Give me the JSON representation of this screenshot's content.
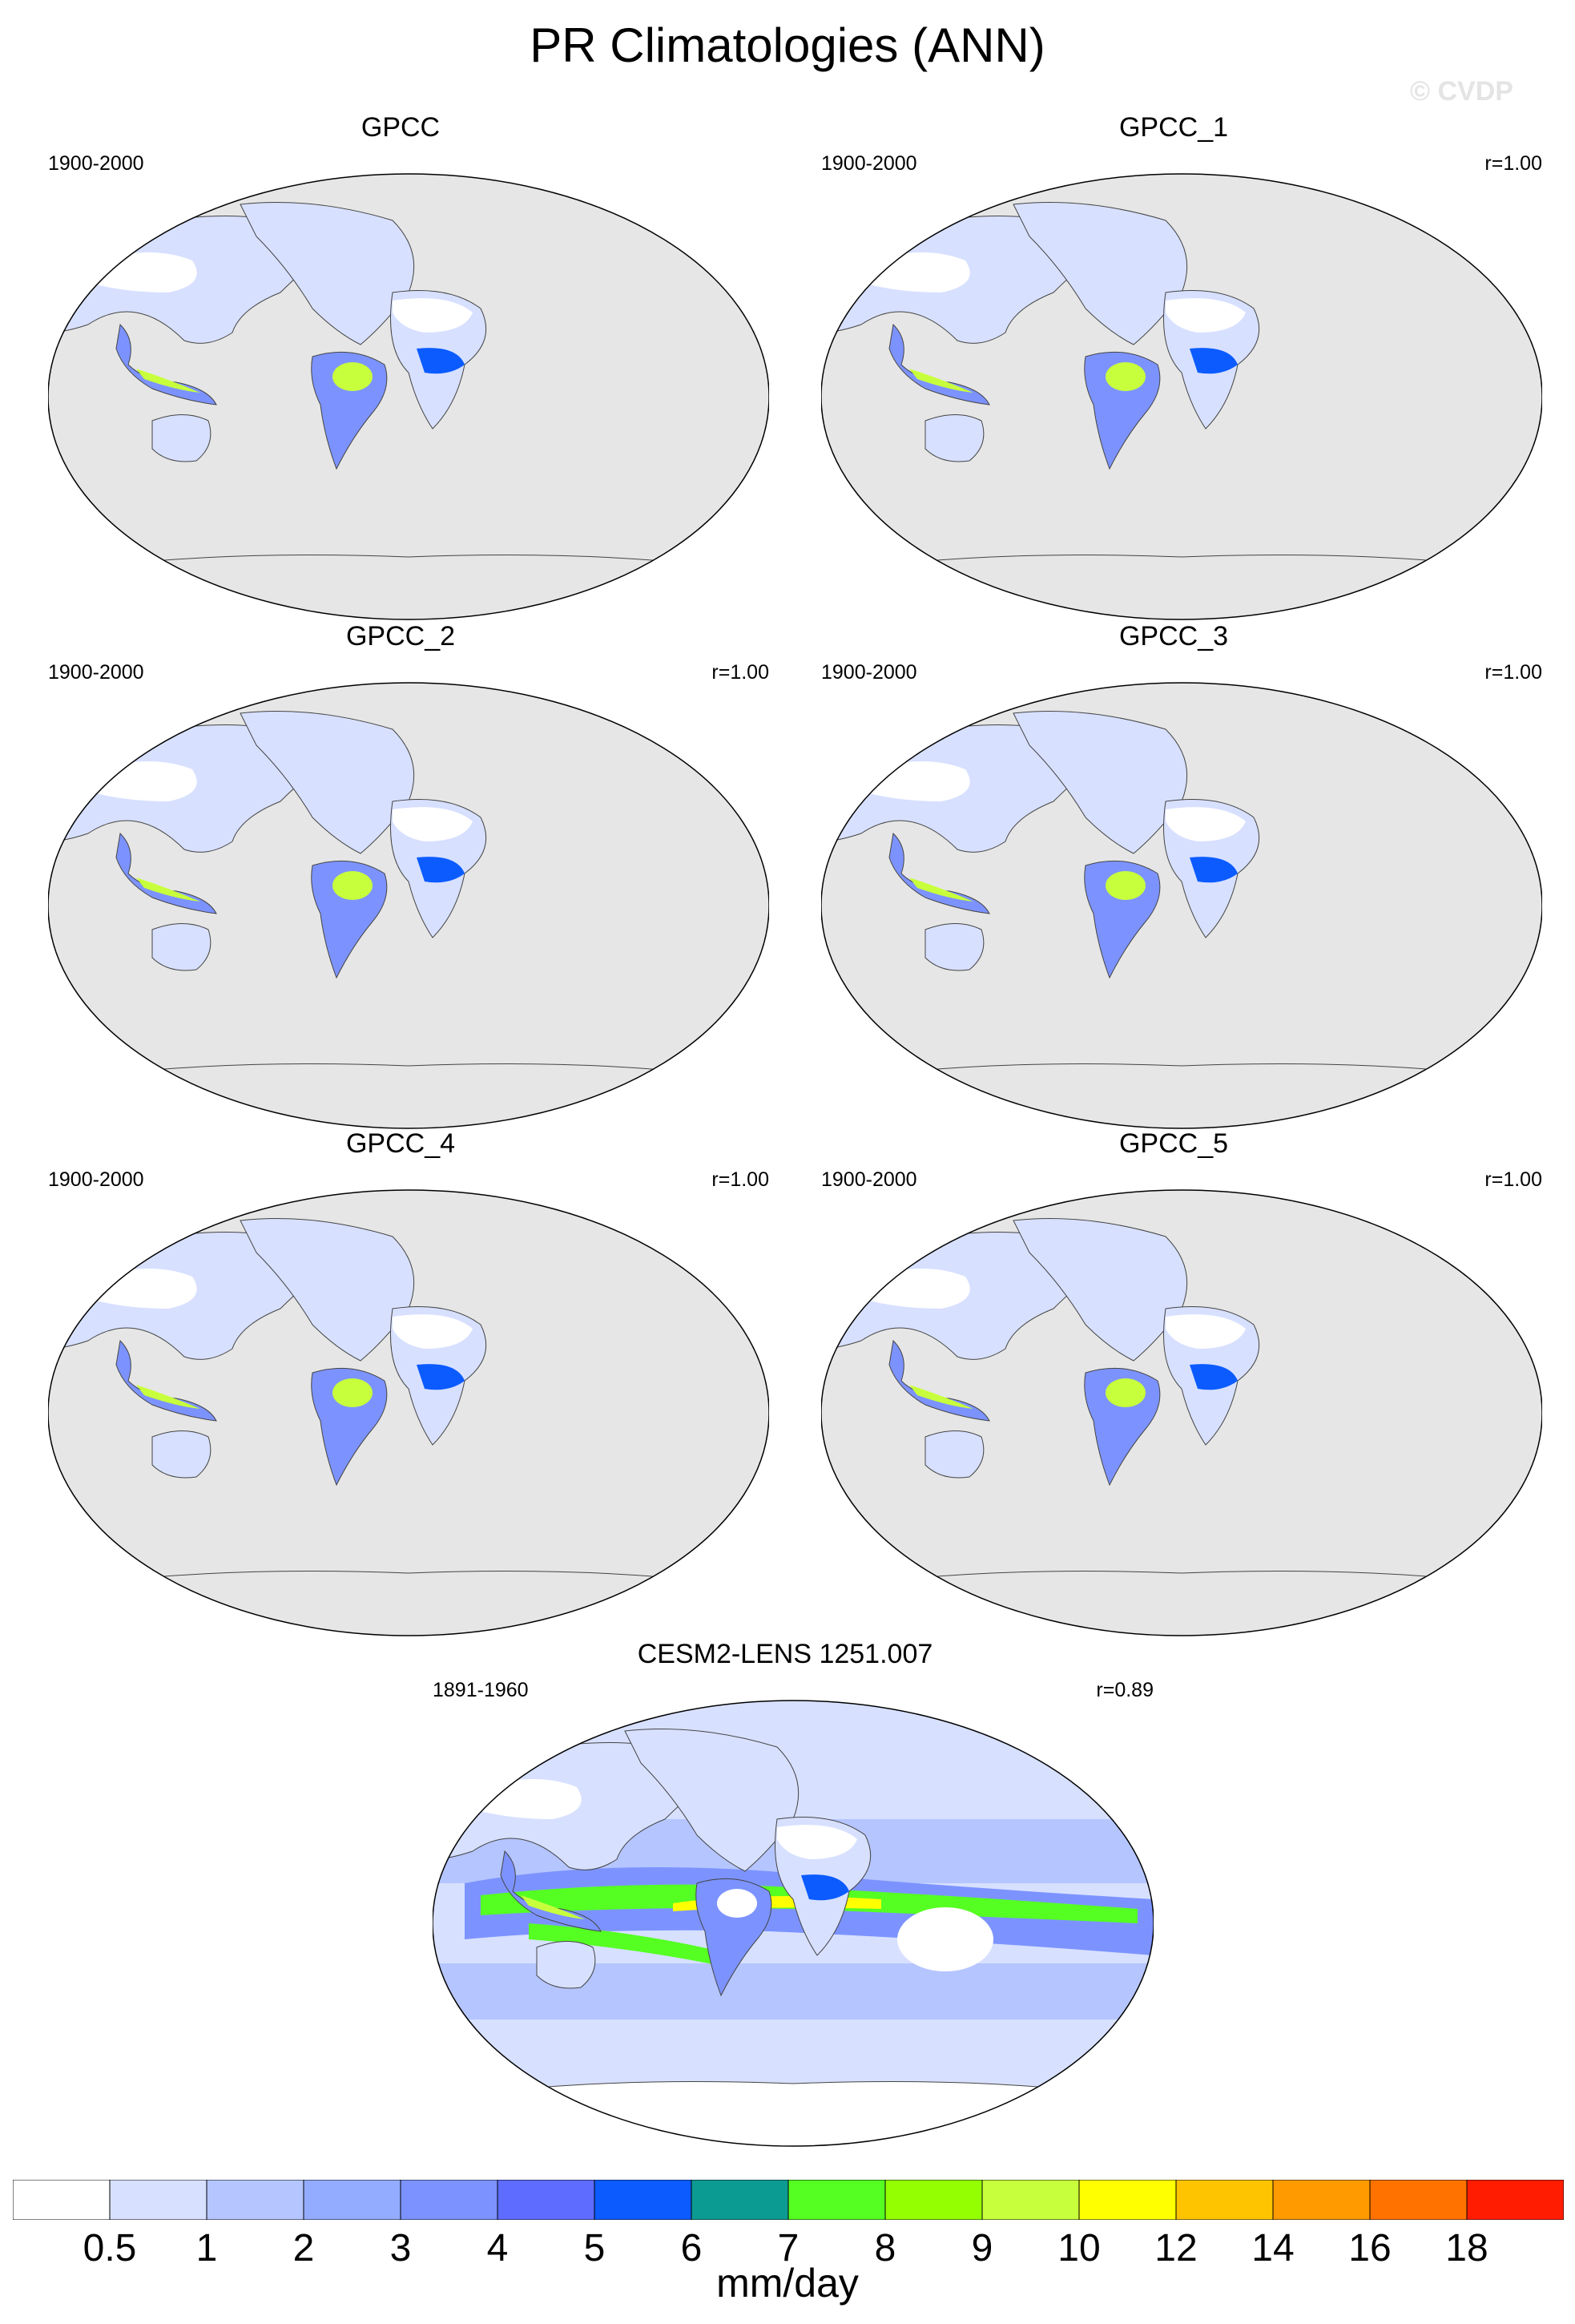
{
  "title": "PR Climatologies (ANN)",
  "watermark": "© CVDP",
  "panels": [
    {
      "title": "GPCC",
      "period": "1900-2000",
      "corr": ""
    },
    {
      "title": "GPCC_1",
      "period": "1900-2000",
      "corr": "r=1.00"
    },
    {
      "title": "GPCC_2",
      "period": "1900-2000",
      "corr": "r=1.00"
    },
    {
      "title": "GPCC_3",
      "period": "1900-2000",
      "corr": "r=1.00"
    },
    {
      "title": "GPCC_4",
      "period": "1900-2000",
      "corr": "r=1.00"
    },
    {
      "title": "GPCC_5",
      "period": "1900-2000",
      "corr": "r=1.00"
    },
    {
      "title": "CESM2-LENS 1251.007",
      "period": "1891-1960",
      "corr": "r=0.89"
    }
  ],
  "colorbar": {
    "unit": "mm/day",
    "levels": [
      "0.5",
      "1",
      "2",
      "3",
      "4",
      "5",
      "6",
      "7",
      "8",
      "9",
      "10",
      "12",
      "14",
      "16",
      "18"
    ],
    "colors": [
      "#ffffff",
      "#d7e0ff",
      "#b5c5ff",
      "#93acff",
      "#7c93ff",
      "#5e6cff",
      "#0b5bff",
      "#0c9b93",
      "#55ff22",
      "#93ff00",
      "#c8ff3c",
      "#ffff00",
      "#ffc400",
      "#ff9a00",
      "#ff7200",
      "#ff1c00"
    ]
  },
  "map_colors": {
    "ocean_obs": "#e6e6e6",
    "land_dry": "#ffffff",
    "land_light": "#d7e0ff",
    "land_mid": "#b5c5ff",
    "land_wet": "#7c93ff",
    "land_verywet": "#0b5bff",
    "tropic_max": "#c8ff3c",
    "itcz_core": "#55ff22"
  }
}
